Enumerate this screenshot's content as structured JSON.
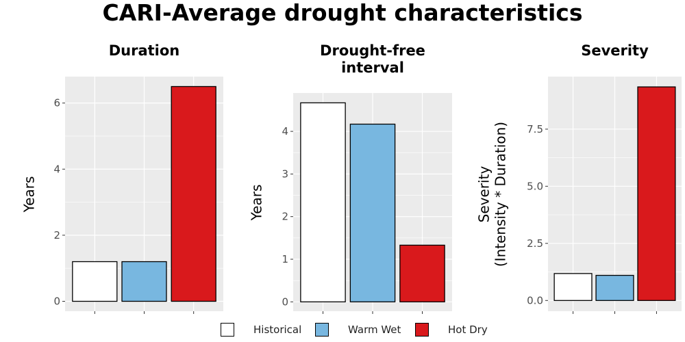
{
  "title": "CARI-Average drought characteristics",
  "colors": {
    "panel_bg": "#EBEBEB",
    "grid": "#FFFFFF",
    "bar_outline": "#000000",
    "axis_text": "#4D4D4D",
    "Historical": "#FFFFFF",
    "Warm Wet": "#78B7E0",
    "Hot Dry": "#D9191C"
  },
  "legend": {
    "items": [
      {
        "label": "Historical",
        "color": "#FFFFFF"
      },
      {
        "label": "Warm Wet",
        "color": "#78B7E0"
      },
      {
        "label": "Hot Dry",
        "color": "#D9191C"
      }
    ]
  },
  "chart_data": [
    {
      "type": "bar",
      "title": "Duration",
      "xlabel": "",
      "ylabel": "Years",
      "categories": [
        "Historical",
        "Warm Wet",
        "Hot Dry"
      ],
      "values": [
        1.2,
        1.2,
        6.5
      ],
      "ylim": [
        -0.3,
        6.8
      ],
      "yticks": [
        0,
        2,
        4,
        6
      ],
      "ytick_labels": [
        "0",
        "2",
        "4",
        "6"
      ],
      "grid": true
    },
    {
      "type": "bar",
      "title": "Drought-free interval",
      "title_lines": [
        "Drought-free",
        "interval"
      ],
      "xlabel": "",
      "ylabel": "Years",
      "categories": [
        "Historical",
        "Warm Wet",
        "Hot Dry"
      ],
      "values": [
        4.67,
        4.17,
        1.33
      ],
      "ylim": [
        -0.22,
        4.9
      ],
      "yticks": [
        0,
        1,
        2,
        3,
        4
      ],
      "ytick_labels": [
        "0",
        "1",
        "2",
        "3",
        "4"
      ],
      "grid": true
    },
    {
      "type": "bar",
      "title": "Severity",
      "xlabel": "",
      "ylabel": "Severity (Intensity * Duration)",
      "ylabel_lines": [
        "Severity",
        "(Intensity * Duration)"
      ],
      "categories": [
        "Historical",
        "Warm Wet",
        "Hot Dry"
      ],
      "values": [
        1.18,
        1.1,
        9.35
      ],
      "ylim": [
        -0.47,
        9.8
      ],
      "yticks": [
        0,
        2.5,
        5,
        7.5
      ],
      "ytick_labels": [
        "0.0",
        "2.5",
        "5.0",
        "7.5"
      ],
      "grid": true
    }
  ]
}
